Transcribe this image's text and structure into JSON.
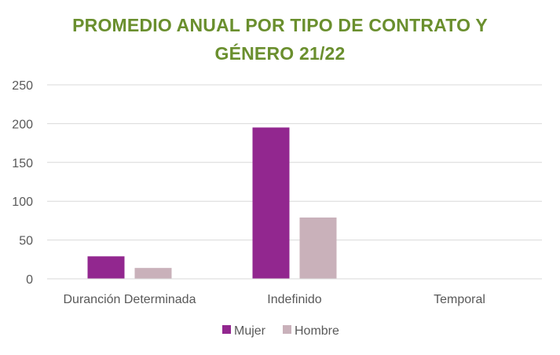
{
  "colors": {
    "title": "#6a8f2e",
    "mujer": "#92278f",
    "hombre": "#c9b1ba",
    "grid": "#d9d9d9",
    "axis_text": "#595959"
  },
  "chart_data": {
    "type": "bar",
    "title_line1": "PROMEDIO ANUAL POR TIPO DE CONTRATO  Y",
    "title_line2": "GÉNERO 21/22",
    "categories": [
      "Duranción Determinada",
      "Indefinido",
      "Temporal"
    ],
    "series": [
      {
        "name": "Mujer",
        "values": [
          29,
          195,
          0
        ]
      },
      {
        "name": "Hombre",
        "values": [
          14,
          79,
          0
        ]
      }
    ],
    "yticks": [
      "0",
      "50",
      "100",
      "150",
      "200",
      "250"
    ],
    "ylim": [
      0,
      250
    ],
    "grid": true,
    "legend_position": "bottom-center"
  }
}
